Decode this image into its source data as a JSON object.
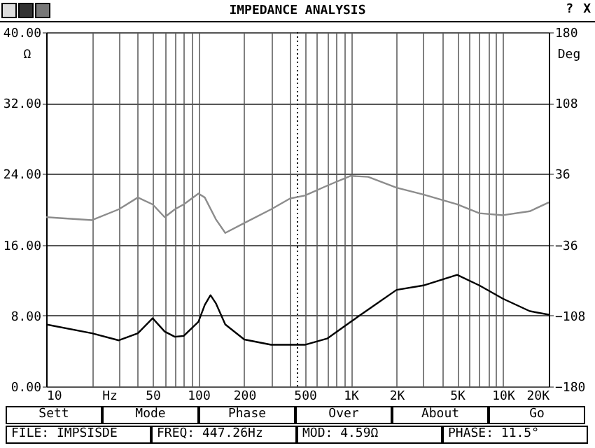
{
  "chart_data": {
    "type": "line",
    "title": "IMPEDANCE ANALYSIS",
    "xlabel": "Hz",
    "ylabel": "Ω",
    "y2label": "Deg",
    "log": "x",
    "grid": true,
    "xlim": [
      10,
      20000
    ],
    "xticks": [
      10,
      {
        "value": 20,
        "label": null
      },
      {
        "value": 30,
        "label": null
      },
      {
        "value": 40,
        "label": null
      },
      50,
      {
        "value": 60,
        "label": null
      },
      {
        "value": 70,
        "label": null
      },
      {
        "value": 80,
        "label": null
      },
      {
        "value": 90,
        "label": null
      },
      100,
      200,
      {
        "value": 300,
        "label": null
      },
      {
        "value": 400,
        "label": null
      },
      500,
      {
        "value": 600,
        "label": null
      },
      {
        "value": 700,
        "label": null
      },
      {
        "value": 800,
        "label": null
      },
      {
        "value": 900,
        "label": null
      },
      {
        "value": 1000,
        "label": "1K"
      },
      {
        "value": 2000,
        "label": "2K"
      },
      {
        "value": 3000,
        "label": null
      },
      {
        "value": 4000,
        "label": null
      },
      {
        "value": 5000,
        "label": "5K"
      },
      {
        "value": 6000,
        "label": null
      },
      {
        "value": 7000,
        "label": null
      },
      {
        "value": 8000,
        "label": null
      },
      {
        "value": 9000,
        "label": null
      },
      {
        "value": 10000,
        "label": "10K"
      },
      {
        "value": 20000,
        "label": "20K"
      }
    ],
    "ylim": [
      0,
      40
    ],
    "yticks": [
      {
        "value": 0,
        "label": "0.00"
      },
      {
        "value": 8,
        "label": "8.00"
      },
      {
        "value": 16,
        "label": "16.00"
      },
      {
        "value": 24,
        "label": "24.00"
      },
      {
        "value": 32,
        "label": "32.00"
      },
      {
        "value": 40,
        "label": "40.00"
      }
    ],
    "y2lim": [
      -180,
      180
    ],
    "y2ticks": [
      -180,
      -108,
      -36,
      36,
      108,
      180
    ],
    "series": [
      {
        "color": "#000000",
        "x": [
          10,
          20,
          30,
          40,
          50,
          60,
          70,
          80,
          100,
          110,
          120,
          130,
          150,
          200,
          300,
          400,
          500,
          700,
          1000,
          1500,
          2000,
          3000,
          5000,
          7000,
          10000,
          15000,
          20000
        ],
        "values": [
          7.0,
          6.0,
          5.2,
          6.0,
          7.7,
          6.2,
          5.6,
          5.7,
          7.3,
          9.2,
          10.3,
          9.4,
          7.0,
          5.3,
          4.7,
          4.7,
          4.7,
          5.4,
          7.3,
          9.4,
          10.9,
          11.4,
          12.6,
          11.4,
          9.9,
          8.5,
          8.1
        ]
      },
      {
        "color": "#8c8c8c",
        "axis": "y2",
        "x": [
          10,
          20,
          30,
          40,
          50,
          60,
          70,
          80,
          100,
          110,
          130,
          150,
          200,
          300,
          400,
          500,
          700,
          1000,
          1300,
          2000,
          3000,
          5000,
          7000,
          10000,
          15000,
          20000
        ],
        "values": [
          -8,
          -11,
          0,
          12,
          5,
          -8,
          0,
          5,
          16,
          12,
          -10,
          -24,
          -14,
          0,
          11,
          14,
          24,
          34,
          33,
          22,
          15,
          5,
          -4,
          -6,
          -2,
          7
        ]
      }
    ],
    "ref_lines": [
      {
        "axis": "x",
        "value": 447.26,
        "color": "#000000",
        "line_style": "dotted"
      }
    ],
    "annotations": [
      "?",
      "X",
      "Sett",
      "Mode",
      "Phase",
      "Over",
      "About",
      "Go",
      "FILE: IMPSISDE",
      "FREQ: 447.26Hz",
      "MOD: 4.59Ω",
      "PHASE: 11.5°"
    ]
  }
}
